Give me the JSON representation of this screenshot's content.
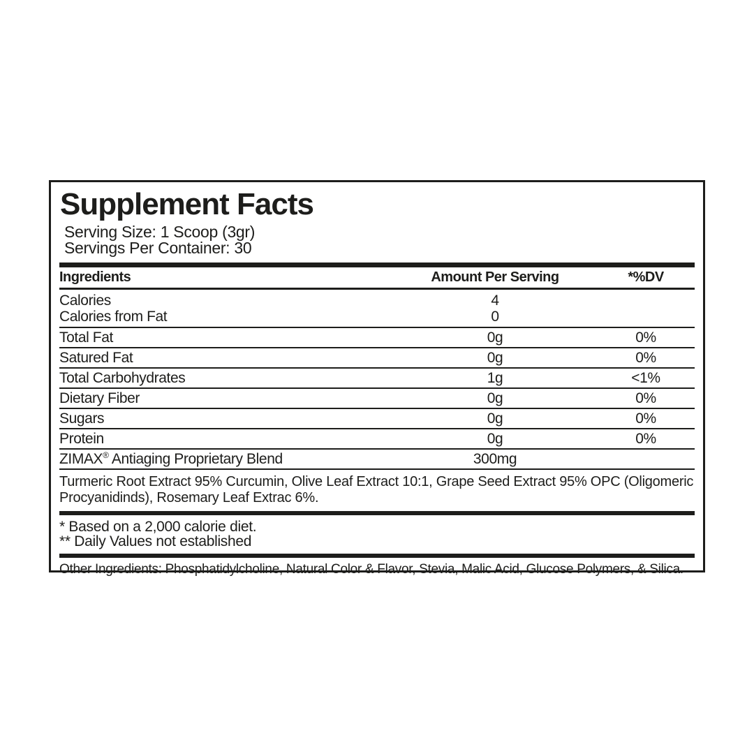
{
  "panel": {
    "title": "Supplement Facts",
    "serving_size": "Serving Size: 1 Scoop (3gr)",
    "servings_per_container": "Servings Per Container: 30",
    "columns": {
      "ingredients": "Ingredients",
      "amount": "Amount Per Serving",
      "dv": "*%DV"
    },
    "calorie_rows": [
      {
        "name": "Calories",
        "amount": "4",
        "dv": ""
      },
      {
        "name": "Calories from Fat",
        "amount": "0",
        "dv": ""
      }
    ],
    "nutrient_rows": [
      {
        "name": "Total Fat",
        "amount": "0g",
        "dv": "0%"
      },
      {
        "name": "Satured Fat",
        "amount": "0g",
        "dv": "0%"
      },
      {
        "name": "Total Carbohydrates",
        "amount": "1g",
        "dv": "<1%"
      },
      {
        "name": "Dietary Fiber",
        "amount": "0g",
        "dv": "0%"
      },
      {
        "name": "Sugars",
        "amount": "0g",
        "dv": "0%"
      },
      {
        "name": "Protein",
        "amount": "0g",
        "dv": "0%"
      },
      {
        "name": "ZIMAX® Antiaging Proprietary Blend",
        "amount": "300mg",
        "dv": ""
      }
    ],
    "blend_description": "Turmeric Root Extract 95% Curcumin, Olive Leaf Extract 10:1, Grape Seed Extract 95% OPC (Oligomeric Procyanidinds), Rosemary Leaf Extrac 6%.",
    "footnotes": [
      "* Based on a 2,000 calorie diet.",
      "** Daily Values not established"
    ],
    "other_ingredients": "Other Ingredients: Phosphatidylcholine, Natural Color & Flavor, Stevia, Malic Acid, Glucose Polymers, & Silica."
  },
  "colors": {
    "text": "#1d1d1b",
    "background": "#ffffff"
  }
}
